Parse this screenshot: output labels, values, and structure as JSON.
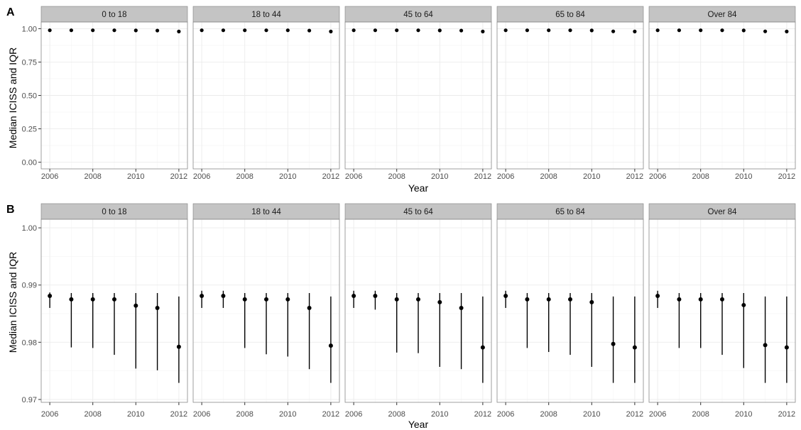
{
  "panel_labels": [
    "A",
    "B"
  ],
  "facets": [
    "0 to 18",
    "18 to 44",
    "45 to 64",
    "65 to 84",
    "Over 84"
  ],
  "xlabel": "Year",
  "ylabel": "Median ICISS and IQR",
  "colors": {
    "strip_bg": "#c4c4c4",
    "strip_border": "#7f7f7f",
    "panel_border": "#888888",
    "grid_major": "#ebebeb",
    "grid_minor": "#f5f5f5",
    "mark": "#000000",
    "text": "#000000",
    "tick_text": "#4d4d4d"
  },
  "chart_data": [
    {
      "type": "scatter",
      "panel": "A",
      "x_ticks": [
        2006,
        2008,
        2010,
        2012
      ],
      "x_tick_labels": [
        "2006",
        "2008",
        "2010",
        "2012"
      ],
      "xlim": [
        2005.6,
        2012.4
      ],
      "ylim": [
        -0.05,
        1.05
      ],
      "y_ticks": [
        0.0,
        0.25,
        0.5,
        0.75,
        1.0
      ],
      "y_tick_labels": [
        "0.00",
        "0.25",
        "0.50",
        "0.75",
        "1.00"
      ],
      "x": [
        2006,
        2007,
        2008,
        2009,
        2010,
        2011,
        2012
      ],
      "series": [
        {
          "facet": "0 to 18",
          "y": [
            0.988,
            0.988,
            0.988,
            0.988,
            0.987,
            0.986,
            0.979
          ]
        },
        {
          "facet": "18 to 44",
          "y": [
            0.988,
            0.988,
            0.988,
            0.988,
            0.988,
            0.986,
            0.979
          ]
        },
        {
          "facet": "45 to 64",
          "y": [
            0.988,
            0.988,
            0.988,
            0.988,
            0.987,
            0.986,
            0.979
          ]
        },
        {
          "facet": "65 to 84",
          "y": [
            0.988,
            0.988,
            0.988,
            0.988,
            0.987,
            0.98,
            0.979
          ]
        },
        {
          "facet": "Over 84",
          "y": [
            0.988,
            0.988,
            0.988,
            0.988,
            0.987,
            0.98,
            0.979
          ]
        }
      ]
    },
    {
      "type": "errorbar",
      "panel": "B",
      "x_ticks": [
        2006,
        2008,
        2010,
        2012
      ],
      "x_tick_labels": [
        "2006",
        "2008",
        "2010",
        "2012"
      ],
      "xlim": [
        2005.6,
        2012.4
      ],
      "ylim": [
        0.9695,
        1.0015
      ],
      "y_ticks": [
        0.97,
        0.98,
        0.99,
        1.0
      ],
      "y_tick_labels": [
        "0.97",
        "0.98",
        "0.99",
        "1.00"
      ],
      "x": [
        2006,
        2007,
        2008,
        2009,
        2010,
        2011,
        2012
      ],
      "series": [
        {
          "facet": "0 to 18",
          "median": [
            0.9881,
            0.9875,
            0.9875,
            0.9875,
            0.9864,
            0.986,
            0.9792
          ],
          "q1": [
            0.986,
            0.9791,
            0.979,
            0.9778,
            0.9754,
            0.9751,
            0.9729
          ],
          "q3": [
            0.9887,
            0.9886,
            0.9886,
            0.9886,
            0.9886,
            0.9886,
            0.988
          ]
        },
        {
          "facet": "18 to 44",
          "median": [
            0.9881,
            0.9881,
            0.9875,
            0.9875,
            0.9875,
            0.986,
            0.9794
          ],
          "q1": [
            0.986,
            0.986,
            0.979,
            0.9779,
            0.9775,
            0.9753,
            0.9729
          ],
          "q3": [
            0.989,
            0.989,
            0.9886,
            0.9886,
            0.9886,
            0.9886,
            0.988
          ]
        },
        {
          "facet": "45 to 64",
          "median": [
            0.9881,
            0.9881,
            0.9875,
            0.9875,
            0.987,
            0.986,
            0.9791
          ],
          "q1": [
            0.986,
            0.9857,
            0.9782,
            0.9781,
            0.9757,
            0.9753,
            0.9729
          ],
          "q3": [
            0.989,
            0.989,
            0.9886,
            0.9886,
            0.9886,
            0.9886,
            0.988
          ]
        },
        {
          "facet": "65 to 84",
          "median": [
            0.9881,
            0.9875,
            0.9875,
            0.9875,
            0.987,
            0.9797,
            0.9791
          ],
          "q1": [
            0.986,
            0.979,
            0.9783,
            0.9778,
            0.9757,
            0.9729,
            0.9729
          ],
          "q3": [
            0.989,
            0.9886,
            0.9886,
            0.9886,
            0.9886,
            0.988,
            0.988
          ]
        },
        {
          "facet": "Over 84",
          "median": [
            0.9881,
            0.9875,
            0.9875,
            0.9875,
            0.9865,
            0.9795,
            0.9791
          ],
          "q1": [
            0.986,
            0.979,
            0.979,
            0.9778,
            0.9755,
            0.9729,
            0.9729
          ],
          "q3": [
            0.989,
            0.9886,
            0.9886,
            0.9886,
            0.9886,
            0.988,
            0.988
          ]
        }
      ]
    }
  ]
}
